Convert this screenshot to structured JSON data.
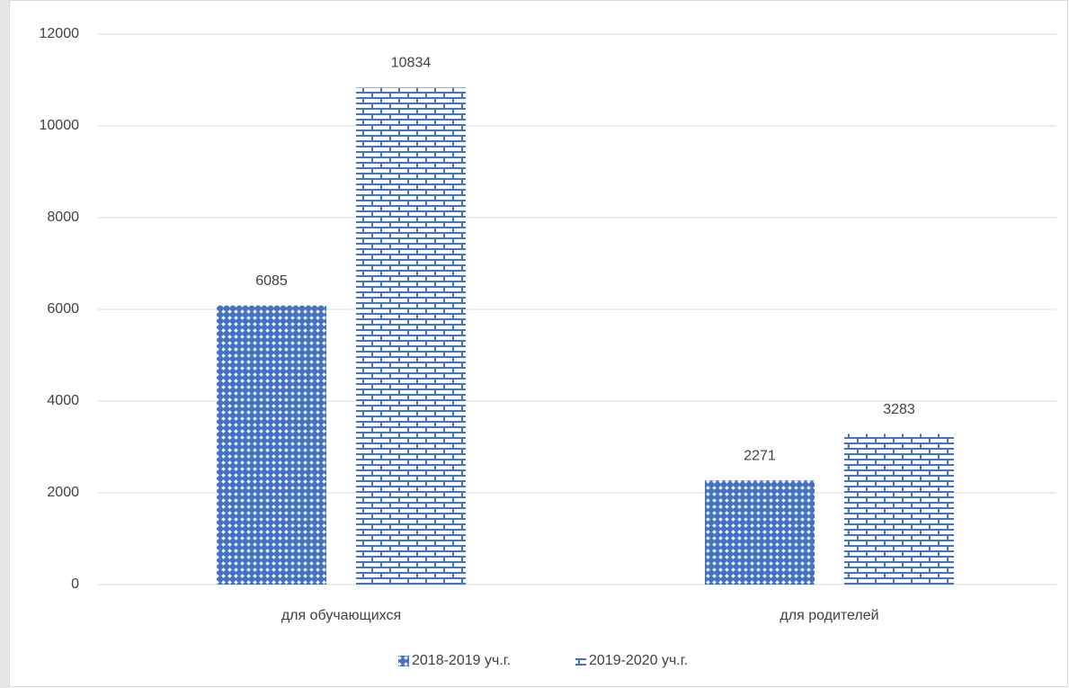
{
  "chart_data": {
    "type": "bar",
    "categories": [
      "для обучающихся",
      "для родителей"
    ],
    "series": [
      {
        "name": "2018-2019 уч.г.",
        "color": "#4472c4",
        "values": [
          6085,
          2271
        ]
      },
      {
        "name": "2019-2020 уч.г.",
        "color": "#4472c4",
        "values": [
          10834,
          3283
        ]
      }
    ],
    "ylim": [
      0,
      12000
    ],
    "yticks": [
      0,
      2000,
      4000,
      6000,
      8000,
      10000,
      12000
    ],
    "grid": true,
    "legend": "bottom"
  }
}
